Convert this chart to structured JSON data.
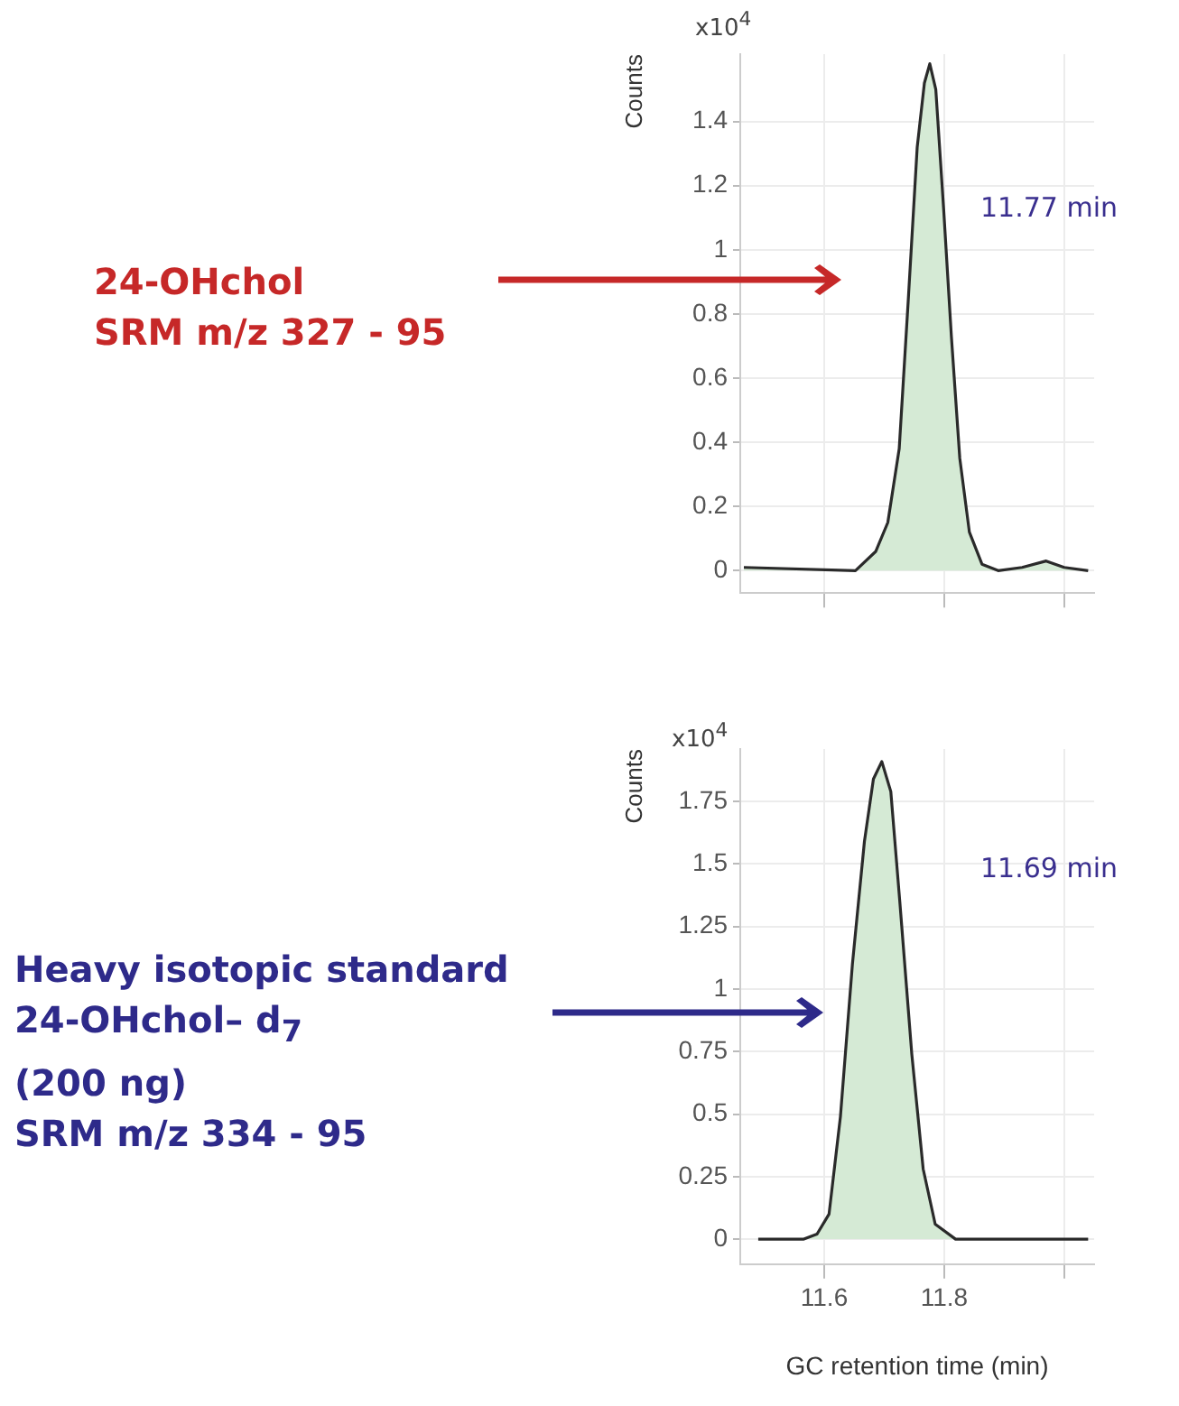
{
  "chart_data": [
    {
      "type": "area",
      "ylabel": "Counts",
      "annotations": [
        "x10$^{4}$",
        "11.77 min",
        "24-OHchol\nSRM m/z 327 - 95"
      ],
      "series": [
        {
          "color": "#d5ead5",
          "x": [
            11.466,
            11.652,
            11.686,
            11.706,
            11.725,
            11.74,
            11.755,
            11.767,
            11.776,
            11.786,
            11.799,
            11.812,
            11.826,
            11.842,
            11.863,
            11.89,
            11.93,
            11.97,
            12.0,
            12.04
          ],
          "values": [
            0.01,
            0,
            0.06,
            0.15,
            0.38,
            0.84,
            1.32,
            1.52,
            1.58,
            1.5,
            1.13,
            0.73,
            0.35,
            0.12,
            0.02,
            0,
            0.01,
            0.03,
            0.01,
            0
          ]
        }
      ],
      "xlim": [
        11.46,
        12.05
      ],
      "xticks": [
        11.6,
        11.8,
        12
      ],
      "ylim": [
        -0.07,
        1.61
      ],
      "yticks": [
        0,
        0.2,
        0.4,
        0.6,
        0.8,
        1,
        1.2,
        1.4
      ],
      "grid": true,
      "marker": "none",
      "tick_labels": "y"
    },
    {
      "type": "area",
      "ylabel": "Counts",
      "xlabel": "GC retention time (min)",
      "annotations": [
        "x10$^{4}$",
        "11.69 min",
        "Heavy isotopic standard\n24-OHchol– d$_{7}$\n(200 ng)\nSRM m/z 334 - 95"
      ],
      "series": [
        {
          "color": "#d5ead5",
          "x": [
            11.49,
            11.566,
            11.588,
            11.608,
            11.627,
            11.647,
            11.667,
            11.682,
            11.696,
            11.711,
            11.726,
            11.746,
            11.765,
            11.785,
            11.819,
            12.04
          ],
          "values": [
            0,
            0,
            0.02,
            0.1,
            0.49,
            1.1,
            1.59,
            1.84,
            1.91,
            1.79,
            1.35,
            0.74,
            0.28,
            0.06,
            0,
            0
          ]
        }
      ],
      "xlim": [
        11.46,
        12.05
      ],
      "xticks": [
        11.6,
        11.8,
        {
          "value": 12,
          "label": null
        }
      ],
      "ylim": [
        -0.1,
        1.96
      ],
      "yticks": [
        0,
        0.25,
        0.5,
        0.75,
        1,
        1.25,
        1.5,
        1.75
      ],
      "grid": true,
      "marker": "none"
    }
  ]
}
